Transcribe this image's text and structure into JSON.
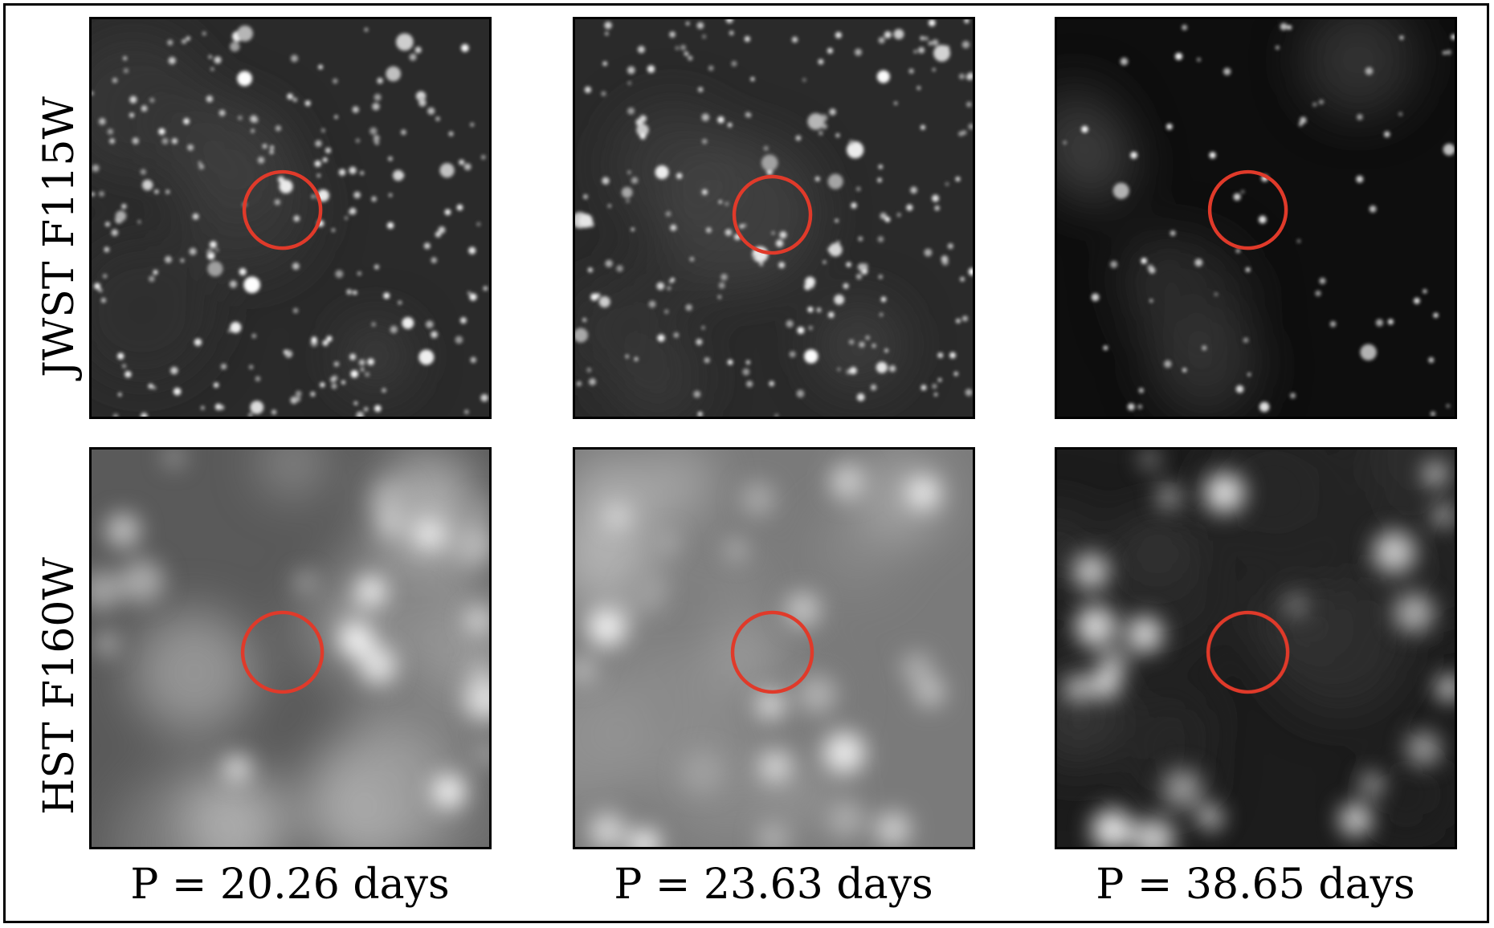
{
  "rows": [
    {
      "label": "JWST F115W"
    },
    {
      "label": "HST F160W"
    }
  ],
  "columns": [
    {
      "label": "P = 20.26 days"
    },
    {
      "label": "P = 23.63 days"
    },
    {
      "label": "P = 38.65 days"
    }
  ],
  "colors": {
    "marker": "#e03a2a",
    "frame": "#000000",
    "background": "#ffffff"
  }
}
